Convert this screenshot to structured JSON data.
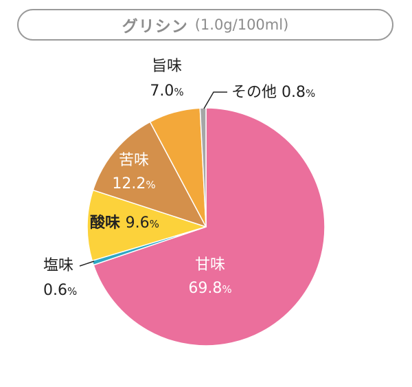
{
  "title": {
    "main": "グリシン",
    "sub": "(1.0g/100ml)"
  },
  "chart_data": {
    "type": "pie",
    "title": "グリシン (1.0g/100ml)",
    "start_angle_deg": 0,
    "direction": "clockwise",
    "slices": [
      {
        "label": "甘味",
        "value": 69.8,
        "display": "69.8",
        "color": "#eb6f9c",
        "text_color": "#ffffff"
      },
      {
        "label": "塩味",
        "value": 0.6,
        "display": "0.6",
        "color": "#2ea7c4",
        "text_color": "#222222"
      },
      {
        "label": "酸味",
        "value": 9.6,
        "display": "9.6",
        "color": "#fcd23b",
        "text_color": "#222222"
      },
      {
        "label": "苦味",
        "value": 12.2,
        "display": "12.2",
        "color": "#d4904b",
        "text_color": "#ffffff"
      },
      {
        "label": "旨味",
        "value": 7.0,
        "display": "7.0",
        "color": "#f3a83a",
        "text_color": "#222222"
      },
      {
        "label": "その他",
        "value": 0.8,
        "display": "0.8",
        "color": "#a6a6a6",
        "text_color": "#222222"
      }
    ],
    "unit": "%"
  }
}
